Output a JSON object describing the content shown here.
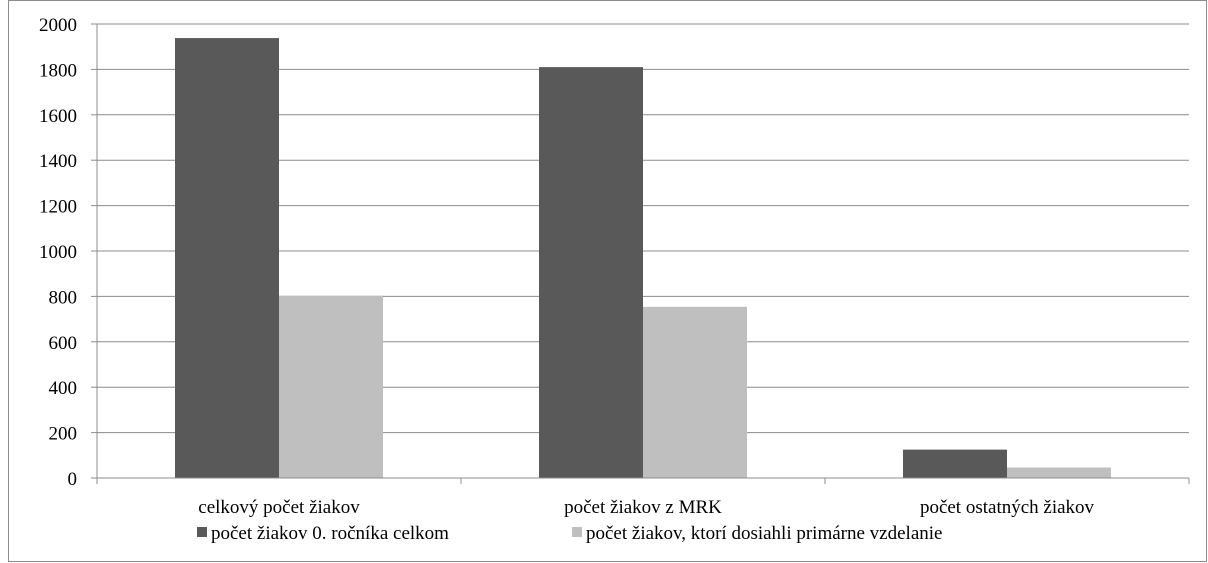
{
  "chart_data": {
    "type": "bar",
    "categories": [
      "celkový počet žiakov",
      "počet žiakov z MRK",
      "počet ostatných žiakov"
    ],
    "series": [
      {
        "name": "počet žiakov 0. ročníka celkom",
        "values": [
          1938,
          1810,
          125
        ],
        "color": "#595959"
      },
      {
        "name": "počet žiakov, ktorí dosiahli primárne vzdelanie",
        "values": [
          803,
          754,
          46
        ],
        "color": "#bfbfbf"
      }
    ],
    "ylim": [
      0,
      2000
    ],
    "yticks": [
      0,
      200,
      400,
      600,
      800,
      1000,
      1200,
      1400,
      1600,
      1800,
      2000
    ],
    "grid": true,
    "legend_position": "bottom"
  }
}
